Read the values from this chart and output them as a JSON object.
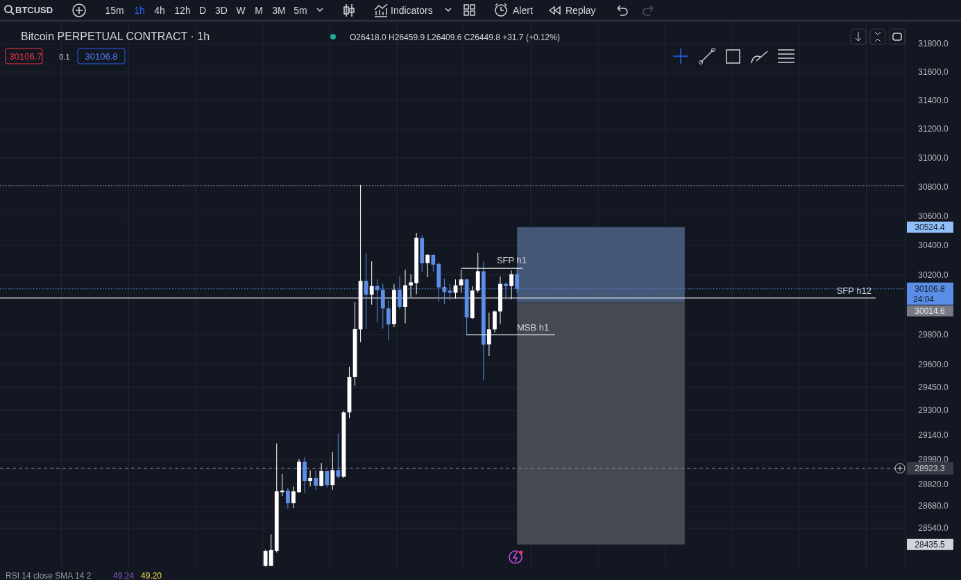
{
  "chart_data": {
    "type": "candlestick",
    "title": "Bitcoin PERPETUAL CONTRACT · 1h",
    "subtitle": "O26418.0 H26459.9 L26409.6 C26449.8 +31.7 (+0.12%)",
    "categories": [
      null,
      null,
      null,
      null,
      null,
      null,
      null,
      null,
      null,
      null,
      null,
      null,
      null,
      null,
      null,
      null,
      null,
      null,
      null,
      null,
      null,
      null,
      null,
      null,
      null,
      null,
      null,
      null,
      null,
      null,
      null,
      null,
      null,
      null,
      null,
      null,
      null,
      null,
      null,
      null,
      null,
      null,
      null,
      null,
      null,
      null,
      null,
      null,
      null,
      null,
      null,
      null,
      null,
      null,
      null,
      null,
      null,
      null,
      null,
      null,
      null,
      null,
      null,
      null,
      null,
      null,
      null,
      null,
      null,
      null,
      null,
      null,
      null,
      null,
      null,
      null,
      null,
      null,
      null,
      null,
      null,
      null,
      null,
      null,
      null,
      null,
      null,
      null,
      null,
      null,
      null,
      null,
      null,
      null,
      null,
      null,
      null,
      null,
      null,
      null,
      null,
      null,
      null,
      null,
      null,
      null,
      null,
      null,
      null,
      null,
      null,
      null,
      null,
      null,
      null,
      null,
      null,
      null,
      null,
      null,
      null,
      null,
      null,
      null,
      null,
      null,
      null,
      null,
      null,
      null,
      null,
      null,
      null,
      null,
      null,
      null,
      null,
      null,
      null,
      null,
      null,
      null,
      null,
      null,
      null,
      null,
      null,
      null,
      null,
      null,
      null,
      null,
      null,
      null,
      null,
      null,
      null,
      null,
      null,
      null,
      null,
      null
    ],
    "ohlc": [
      null,
      null,
      null,
      null,
      null,
      null,
      null,
      null,
      null,
      null,
      null,
      null,
      null,
      null,
      null,
      null,
      null,
      null,
      null,
      null,
      null,
      null,
      null,
      null,
      null,
      null,
      null,
      null,
      null,
      null,
      null,
      null,
      null,
      null,
      null,
      null,
      null,
      null,
      null,
      null,
      null,
      null,
      null,
      null,
      null,
      null,
      null,
      [
        28300,
        28403,
        28296,
        28395
      ],
      [
        28300,
        28500,
        28298,
        28400
      ],
      [
        28395,
        29084,
        28384,
        28775
      ],
      [
        28770,
        28887,
        28744,
        28780
      ],
      [
        28780,
        28798,
        28664,
        28699
      ],
      [
        28699,
        28807,
        28668,
        28775
      ],
      [
        28770,
        28984,
        28765,
        28966
      ],
      [
        28966,
        28998,
        28765,
        28842
      ],
      [
        28842,
        28910,
        28807,
        28860
      ],
      [
        28860,
        28910,
        28785,
        28811
      ],
      [
        28811,
        28958,
        28807,
        28905
      ],
      [
        28905,
        28910,
        28800,
        28815
      ],
      [
        28815,
        29030,
        28785,
        28912
      ],
      [
        28912,
        29148,
        28856,
        28870
      ],
      [
        28870,
        29297,
        28860,
        29287
      ],
      [
        29287,
        29587,
        29250,
        29520
      ],
      [
        29520,
        30017,
        29461,
        29837
      ],
      [
        29835,
        30813,
        29750,
        30160
      ],
      [
        30160,
        30349,
        29837,
        30067
      ],
      [
        30067,
        30292,
        30000,
        30125
      ],
      [
        30125,
        30170,
        29884,
        30098
      ],
      [
        30100,
        30140,
        29840,
        29975
      ],
      [
        29975,
        30030,
        29763,
        29868
      ],
      [
        29870,
        30140,
        29850,
        30100
      ],
      [
        30100,
        30190,
        29970,
        29985
      ],
      [
        29985,
        30235,
        29875,
        30130
      ],
      [
        30130,
        30205,
        30050,
        30150
      ],
      [
        30145,
        30485,
        30070,
        30452
      ],
      [
        30450,
        30470,
        30223,
        30279
      ],
      [
        30280,
        30340,
        30185,
        30336
      ],
      [
        30336,
        30336,
        30223,
        30270
      ],
      [
        30275,
        30285,
        30017,
        30116
      ],
      [
        30120,
        30175,
        30005,
        30085
      ],
      [
        30095,
        30140,
        30030,
        30080
      ],
      [
        30080,
        30170,
        30040,
        30130
      ],
      [
        30130,
        30235,
        30080,
        30170
      ],
      [
        30170,
        30175,
        29800,
        29915
      ],
      [
        29910,
        30125,
        29905,
        30095
      ],
      [
        30095,
        30350,
        30080,
        30225
      ],
      [
        30225,
        30290,
        29496,
        29733
      ],
      [
        29735,
        29947,
        29657,
        29835
      ],
      [
        29835,
        29960,
        29815,
        29955
      ],
      [
        29955,
        30190,
        29870,
        30140
      ],
      [
        30140,
        30150,
        30035,
        30125
      ],
      [
        30125,
        30230,
        30035,
        30205
      ],
      [
        30205,
        30250,
        30080,
        30106.8
      ],
      null,
      null,
      null,
      null,
      null,
      null,
      null,
      null,
      null,
      null,
      null,
      null,
      null,
      null,
      null,
      null,
      null,
      null,
      null,
      null,
      null,
      null,
      null,
      null,
      null,
      null,
      null,
      null,
      null,
      null,
      null,
      null,
      null,
      null,
      null,
      null,
      null,
      null,
      null,
      null,
      null,
      null,
      null,
      null,
      null,
      null,
      null,
      null,
      null,
      null,
      null,
      null,
      null,
      null,
      null,
      null,
      null,
      null,
      null,
      null,
      null,
      null,
      null,
      null,
      null,
      null,
      null,
      null,
      null
    ],
    "ylim": [
      28294,
      31964
    ],
    "yticks": [
      {
        "value": 28540,
        "label": "28540.0"
      },
      {
        "value": 28680,
        "label": "28680.0"
      },
      {
        "value": 28820,
        "label": "28820.0"
      },
      {
        "value": 28980,
        "label": "28980.0"
      },
      {
        "value": 29140,
        "label": "29140.0"
      },
      {
        "value": 29300,
        "label": "29300.0"
      },
      {
        "value": 29450,
        "label": "29450.0"
      },
      {
        "value": 29600,
        "label": "29600.0"
      },
      {
        "value": 29800,
        "label": "29800.0"
      },
      {
        "value": 30200,
        "label": "30200.0"
      },
      {
        "value": 30400,
        "label": "30400.0"
      },
      {
        "value": 30600,
        "label": "30600.0"
      },
      {
        "value": 30800,
        "label": "30800.0"
      },
      {
        "value": 31000,
        "label": "31000.0"
      },
      {
        "value": 31200,
        "label": "31200.0"
      },
      {
        "value": 31400,
        "label": "31400.0"
      },
      {
        "value": 31600,
        "label": "31600.0"
      },
      {
        "value": 31800,
        "label": "31800.0"
      }
    ],
    "log": true,
    "grid": true,
    "tick_labels": "y",
    "ref_lines": [
      {
        "axis": "y",
        "value": 30810,
        "line_style": "dotted",
        "color": "#8a8f9a"
      },
      {
        "axis": "y",
        "value": 30106.8,
        "label": "30106.8",
        "line_style": "dotted",
        "color": "#5b8ee6"
      },
      {
        "axis": "y",
        "value": 30045,
        "label": "SFP h12",
        "line_style": "solid",
        "color": "#ffffff"
      },
      {
        "axis": "y",
        "value": 28923.3,
        "label": "28923.3",
        "line_style": "dashed",
        "color": "#9598a1"
      }
    ],
    "bands": [
      {
        "axis": "y",
        "from": 30014.6,
        "to": 30524.4,
        "color": "#4a5e80"
      },
      {
        "axis": "y",
        "from": 28435.5,
        "to": 30014.6,
        "color": "#4c4f58"
      }
    ],
    "annotations": [
      "BTCUSD",
      "15m",
      "1h",
      "4h",
      "12h",
      "D",
      "3D",
      "W",
      "M",
      "3M",
      "5m",
      "Indicators",
      "Alert",
      "Replay",
      "30106.7",
      "0.1",
      "30106.8",
      "24:04",
      "RSI 14 close SMA 14 2",
      "49.24",
      "49.20",
      {
        "text": "SFP h1",
        "y": 30245
      },
      "MSB h1",
      "30524.4",
      "30014.6",
      "28435.5"
    ]
  }
}
